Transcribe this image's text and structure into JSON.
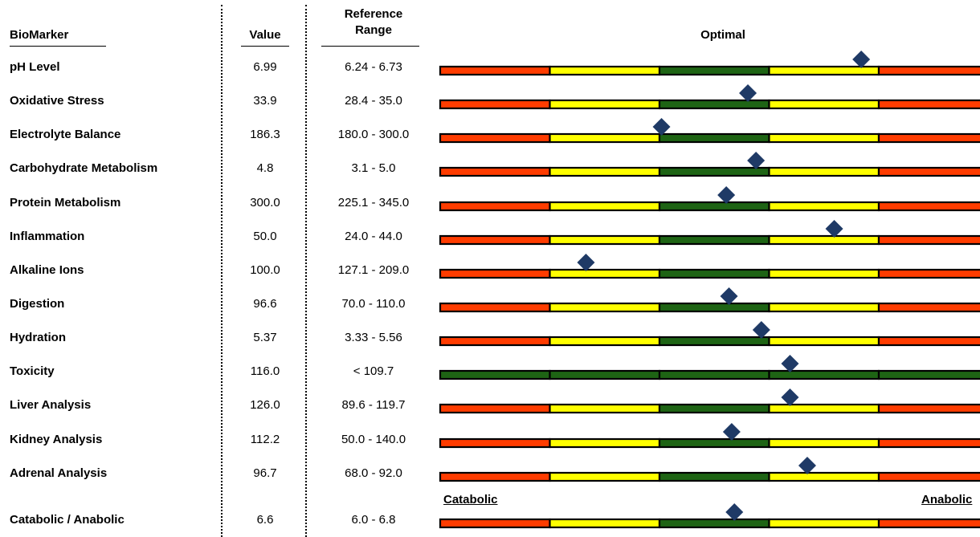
{
  "header": {
    "biomarker": "BioMarker",
    "value": "Value",
    "reference_line1": "Reference",
    "reference_line2": "Range",
    "optimal": "Optimal"
  },
  "colors": {
    "red": "#ff3c00",
    "yellow": "#ffff00",
    "green": "#1e6414",
    "outline": "#000000",
    "marker": "#1f3a66"
  },
  "rows": [
    {
      "name": "pH Level",
      "value": "6.99",
      "range": "6.24 - 6.73",
      "scale": "standard",
      "marker_pos": 0.78
    },
    {
      "name": "Oxidative Stress",
      "value": "33.9",
      "range": "28.4 - 35.0",
      "scale": "standard",
      "marker_pos": 0.57
    },
    {
      "name": "Electrolyte Balance",
      "value": "186.3",
      "range": "180.0 - 300.0",
      "scale": "standard",
      "marker_pos": 0.41
    },
    {
      "name": "Carbohydrate Metabolism",
      "value": "4.8",
      "range": "3.1 - 5.0",
      "scale": "standard",
      "marker_pos": 0.585
    },
    {
      "name": "Protein Metabolism",
      "value": "300.0",
      "range": "225.1 - 345.0",
      "scale": "standard",
      "marker_pos": 0.53
    },
    {
      "name": "Inflammation",
      "value": "50.0",
      "range": "24.0 - 44.0",
      "scale": "standard",
      "marker_pos": 0.73
    },
    {
      "name": "Alkaline Ions",
      "value": "100.0",
      "range": "127.1 - 209.0",
      "scale": "standard",
      "marker_pos": 0.27
    },
    {
      "name": "Digestion",
      "value": "96.6",
      "range": "70.0 - 110.0",
      "scale": "standard",
      "marker_pos": 0.535
    },
    {
      "name": "Hydration",
      "value": "5.37",
      "range": "3.33 - 5.56",
      "scale": "standard",
      "marker_pos": 0.595
    },
    {
      "name": "Toxicity",
      "value": "116.0",
      "range": "< 109.7",
      "scale": "all-green",
      "marker_pos": 0.648
    },
    {
      "name": "Liver Analysis",
      "value": "126.0",
      "range": "89.6 - 119.7",
      "scale": "standard",
      "marker_pos": 0.648
    },
    {
      "name": "Kidney Analysis",
      "value": "112.2",
      "range": "50.0 - 140.0",
      "scale": "standard",
      "marker_pos": 0.54
    },
    {
      "name": "Adrenal Analysis",
      "value": "96.7",
      "range": "68.0  - 92.0",
      "scale": "standard",
      "marker_pos": 0.68
    },
    {
      "name": "Catabolic / Anabolic",
      "value": "6.6",
      "range": "6.0 - 6.8",
      "scale": "standard",
      "marker_pos": 0.545
    }
  ],
  "scale_labels": {
    "left": "Catabolic",
    "right": "Anabolic"
  }
}
